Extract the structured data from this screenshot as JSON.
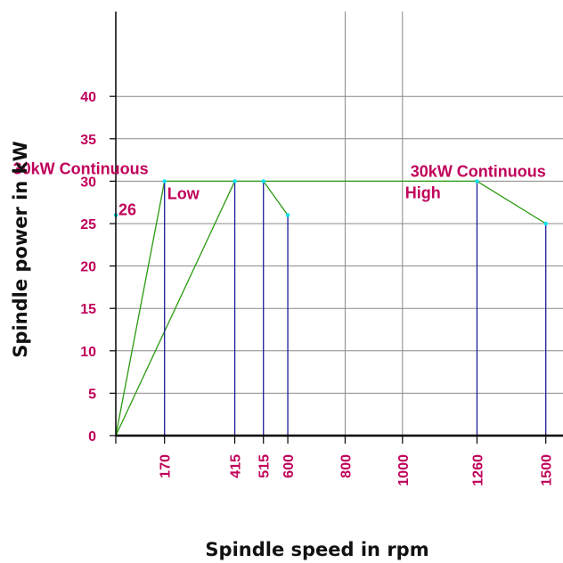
{
  "colors": {
    "label": "#c0005a",
    "curve": "#2a9a10",
    "marker_line": "#1c1c9a",
    "point": "#00e5ee",
    "grid": "#888888",
    "axis": "#000000"
  },
  "chart_data": {
    "type": "line",
    "xlabel": "Spindle speed in rpm",
    "ylabel": "Spindle power in kW",
    "xlim": [
      0,
      1560
    ],
    "ylim": [
      0,
      50
    ],
    "x_ticks": [
      170,
      415,
      515,
      600,
      800,
      1000,
      1260,
      1500
    ],
    "y_ticks": [
      0,
      5,
      10,
      15,
      20,
      25,
      30,
      35,
      40
    ],
    "vertical_gridlines": [
      800,
      1000
    ],
    "series": [
      {
        "key": "low-curve-a",
        "points": [
          [
            0,
            0
          ],
          [
            170,
            30
          ],
          [
            515,
            30
          ],
          [
            600,
            26
          ]
        ]
      },
      {
        "key": "low-curve-b",
        "points": [
          [
            0,
            0
          ],
          [
            415,
            30
          ]
        ]
      },
      {
        "key": "high-curve",
        "points": [
          [
            515,
            30
          ],
          [
            1260,
            30
          ],
          [
            1500,
            25
          ]
        ]
      }
    ],
    "drop_lines": [
      170,
      415,
      515,
      600,
      1260,
      1500
    ],
    "points": [
      [
        0,
        26
      ],
      [
        170,
        30
      ],
      [
        415,
        30
      ],
      [
        515,
        30
      ],
      [
        600,
        26
      ],
      [
        1260,
        30
      ],
      [
        1500,
        25
      ]
    ],
    "annotations": [
      {
        "key": "value-26",
        "text": "26",
        "x": 0,
        "y": 26
      },
      {
        "key": "continuous-low",
        "text": "30kW Continuous",
        "x": 30,
        "y": 30
      },
      {
        "key": "low",
        "text": "Low",
        "x": 170,
        "y": 30
      },
      {
        "key": "continuous-high",
        "text": "30kW Continuous",
        "x": 1000,
        "y": 30
      },
      {
        "key": "high",
        "text": "High",
        "x": 1000,
        "y": 30
      }
    ]
  }
}
